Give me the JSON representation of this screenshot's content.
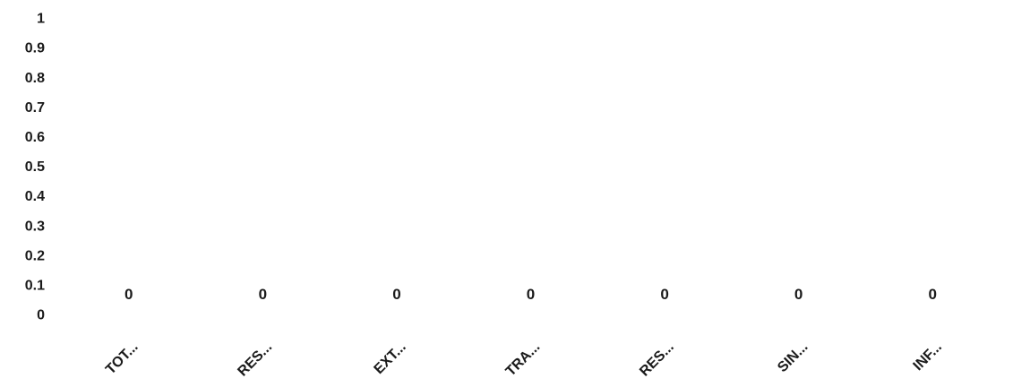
{
  "chart_data": {
    "type": "bar",
    "title": "",
    "xlabel": "",
    "ylabel": "",
    "categories": [
      "TOT...",
      "RES...",
      "EXT...",
      "TRA...",
      "RES...",
      "SIN...",
      "INF..."
    ],
    "series": [
      {
        "values": [
          0,
          0,
          0,
          0,
          0,
          0,
          0
        ],
        "data_labels": [
          "0",
          "0",
          "0",
          "0",
          "0",
          "0",
          "0"
        ]
      }
    ],
    "ylim": [
      0,
      1
    ],
    "y_ticks": [
      "0",
      "0.1",
      "0.2",
      "0.3",
      "0.4",
      "0.5",
      "0.6",
      "0.7",
      "0.8",
      "0.9",
      "1"
    ],
    "grid": false,
    "legend": "none",
    "colors": {
      "text": "#1a1a1a",
      "bar": "#4472c4",
      "background": "#ffffff"
    }
  }
}
